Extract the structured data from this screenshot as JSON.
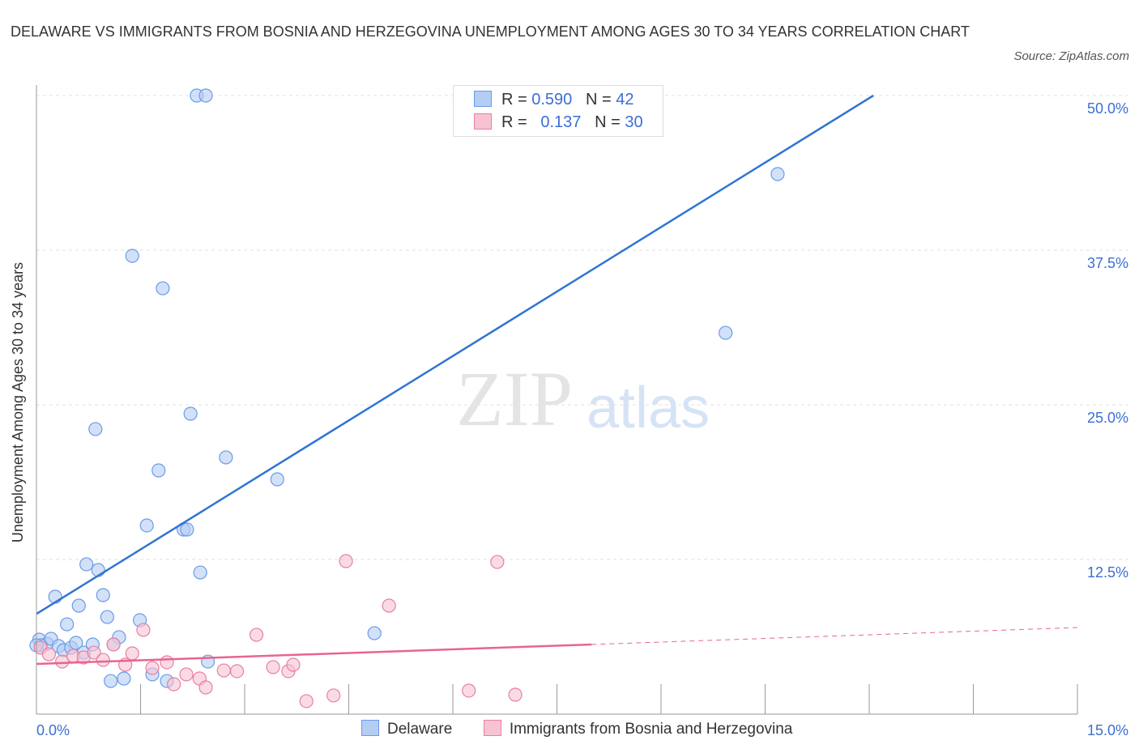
{
  "chart_data": {
    "type": "scatter",
    "title": "DELAWARE VS IMMIGRANTS FROM BOSNIA AND HERZEGOVINA UNEMPLOYMENT AMONG AGES 30 TO 34 YEARS CORRELATION CHART",
    "source": "Source: ZipAtlas.com",
    "xlabel": "",
    "ylabel": "Unemployment Among Ages 30 to 34 years",
    "xlim": [
      0,
      15
    ],
    "ylim": [
      0,
      50
    ],
    "x_tick_labels": [
      "0.0%",
      "15.0%"
    ],
    "y_ticks": [
      12.5,
      25,
      37.5,
      50
    ],
    "y_tick_labels": [
      "12.5%",
      "25.0%",
      "37.5%",
      "50.0%"
    ],
    "grid": true,
    "legend_position": "top-center",
    "series": [
      {
        "name": "Delaware",
        "color": "#6a9be8",
        "fill": "#b4cdf3",
        "R": "0.590",
        "N": "42",
        "trend": {
          "x": [
            0,
            12.06
          ],
          "y": [
            8.1,
            50
          ],
          "dashed_to": null
        },
        "points": [
          [
            2.31,
            50
          ],
          [
            2.44,
            50
          ],
          [
            1.38,
            37.04
          ],
          [
            1.82,
            34.42
          ],
          [
            10.68,
            43.65
          ],
          [
            9.93,
            30.82
          ],
          [
            2.22,
            24.28
          ],
          [
            0.85,
            23.04
          ],
          [
            2.73,
            20.75
          ],
          [
            1.76,
            19.7
          ],
          [
            3.47,
            18.98
          ],
          [
            1.59,
            15.25
          ],
          [
            2.12,
            14.92
          ],
          [
            2.17,
            14.92
          ],
          [
            0.72,
            12.11
          ],
          [
            0.89,
            11.65
          ],
          [
            2.36,
            11.45
          ],
          [
            0.27,
            9.49
          ],
          [
            0.61,
            8.77
          ],
          [
            0.96,
            9.62
          ],
          [
            1.02,
            7.85
          ],
          [
            0.44,
            7.26
          ],
          [
            1.49,
            7.59
          ],
          [
            1.19,
            6.22
          ],
          [
            4.87,
            6.54
          ],
          [
            0.04,
            6.02
          ],
          [
            0.15,
            5.69
          ],
          [
            0.21,
            6.09
          ],
          [
            0.32,
            5.5
          ],
          [
            0.39,
            5.17
          ],
          [
            0.5,
            5.37
          ],
          [
            0.57,
            5.76
          ],
          [
            0.68,
            4.97
          ],
          [
            0.81,
            5.63
          ],
          [
            1.11,
            5.63
          ],
          [
            2.47,
            4.25
          ],
          [
            1.07,
            2.68
          ],
          [
            1.26,
            2.88
          ],
          [
            1.67,
            3.21
          ],
          [
            1.88,
            2.68
          ],
          [
            0.06,
            5.56
          ],
          [
            0,
            5.56
          ]
        ]
      },
      {
        "name": "Immigrants from Bosnia and Herzegovina",
        "color": "#e87fa0",
        "fill": "#f7c3d3",
        "R": "0.137",
        "N": "30",
        "trend": {
          "x": [
            0,
            8.0
          ],
          "y": [
            4.06,
            5.63
          ],
          "dashed_to": [
            15,
            7.0
          ]
        },
        "points": [
          [
            0.06,
            5.37
          ],
          [
            0.18,
            4.84
          ],
          [
            0.37,
            4.25
          ],
          [
            0.53,
            4.71
          ],
          [
            0.68,
            4.58
          ],
          [
            0.83,
            4.97
          ],
          [
            0.96,
            4.38
          ],
          [
            1.11,
            5.63
          ],
          [
            1.28,
            3.99
          ],
          [
            1.38,
            4.91
          ],
          [
            1.54,
            6.81
          ],
          [
            1.67,
            3.73
          ],
          [
            1.88,
            4.19
          ],
          [
            1.98,
            2.42
          ],
          [
            2.16,
            3.21
          ],
          [
            2.35,
            2.88
          ],
          [
            2.44,
            2.16
          ],
          [
            2.7,
            3.53
          ],
          [
            2.89,
            3.47
          ],
          [
            3.17,
            6.41
          ],
          [
            3.41,
            3.8
          ],
          [
            3.63,
            3.47
          ],
          [
            3.7,
            3.99
          ],
          [
            3.89,
            1.05
          ],
          [
            4.28,
            1.51
          ],
          [
            4.46,
            12.37
          ],
          [
            5.08,
            8.77
          ],
          [
            6.23,
            1.9
          ],
          [
            6.64,
            12.3
          ],
          [
            6.9,
            1.57
          ]
        ]
      }
    ]
  },
  "legend": {
    "r_label": "R =",
    "n_label": "N ="
  },
  "watermark": {
    "zip": "ZIP",
    "atlas": "atlas"
  }
}
